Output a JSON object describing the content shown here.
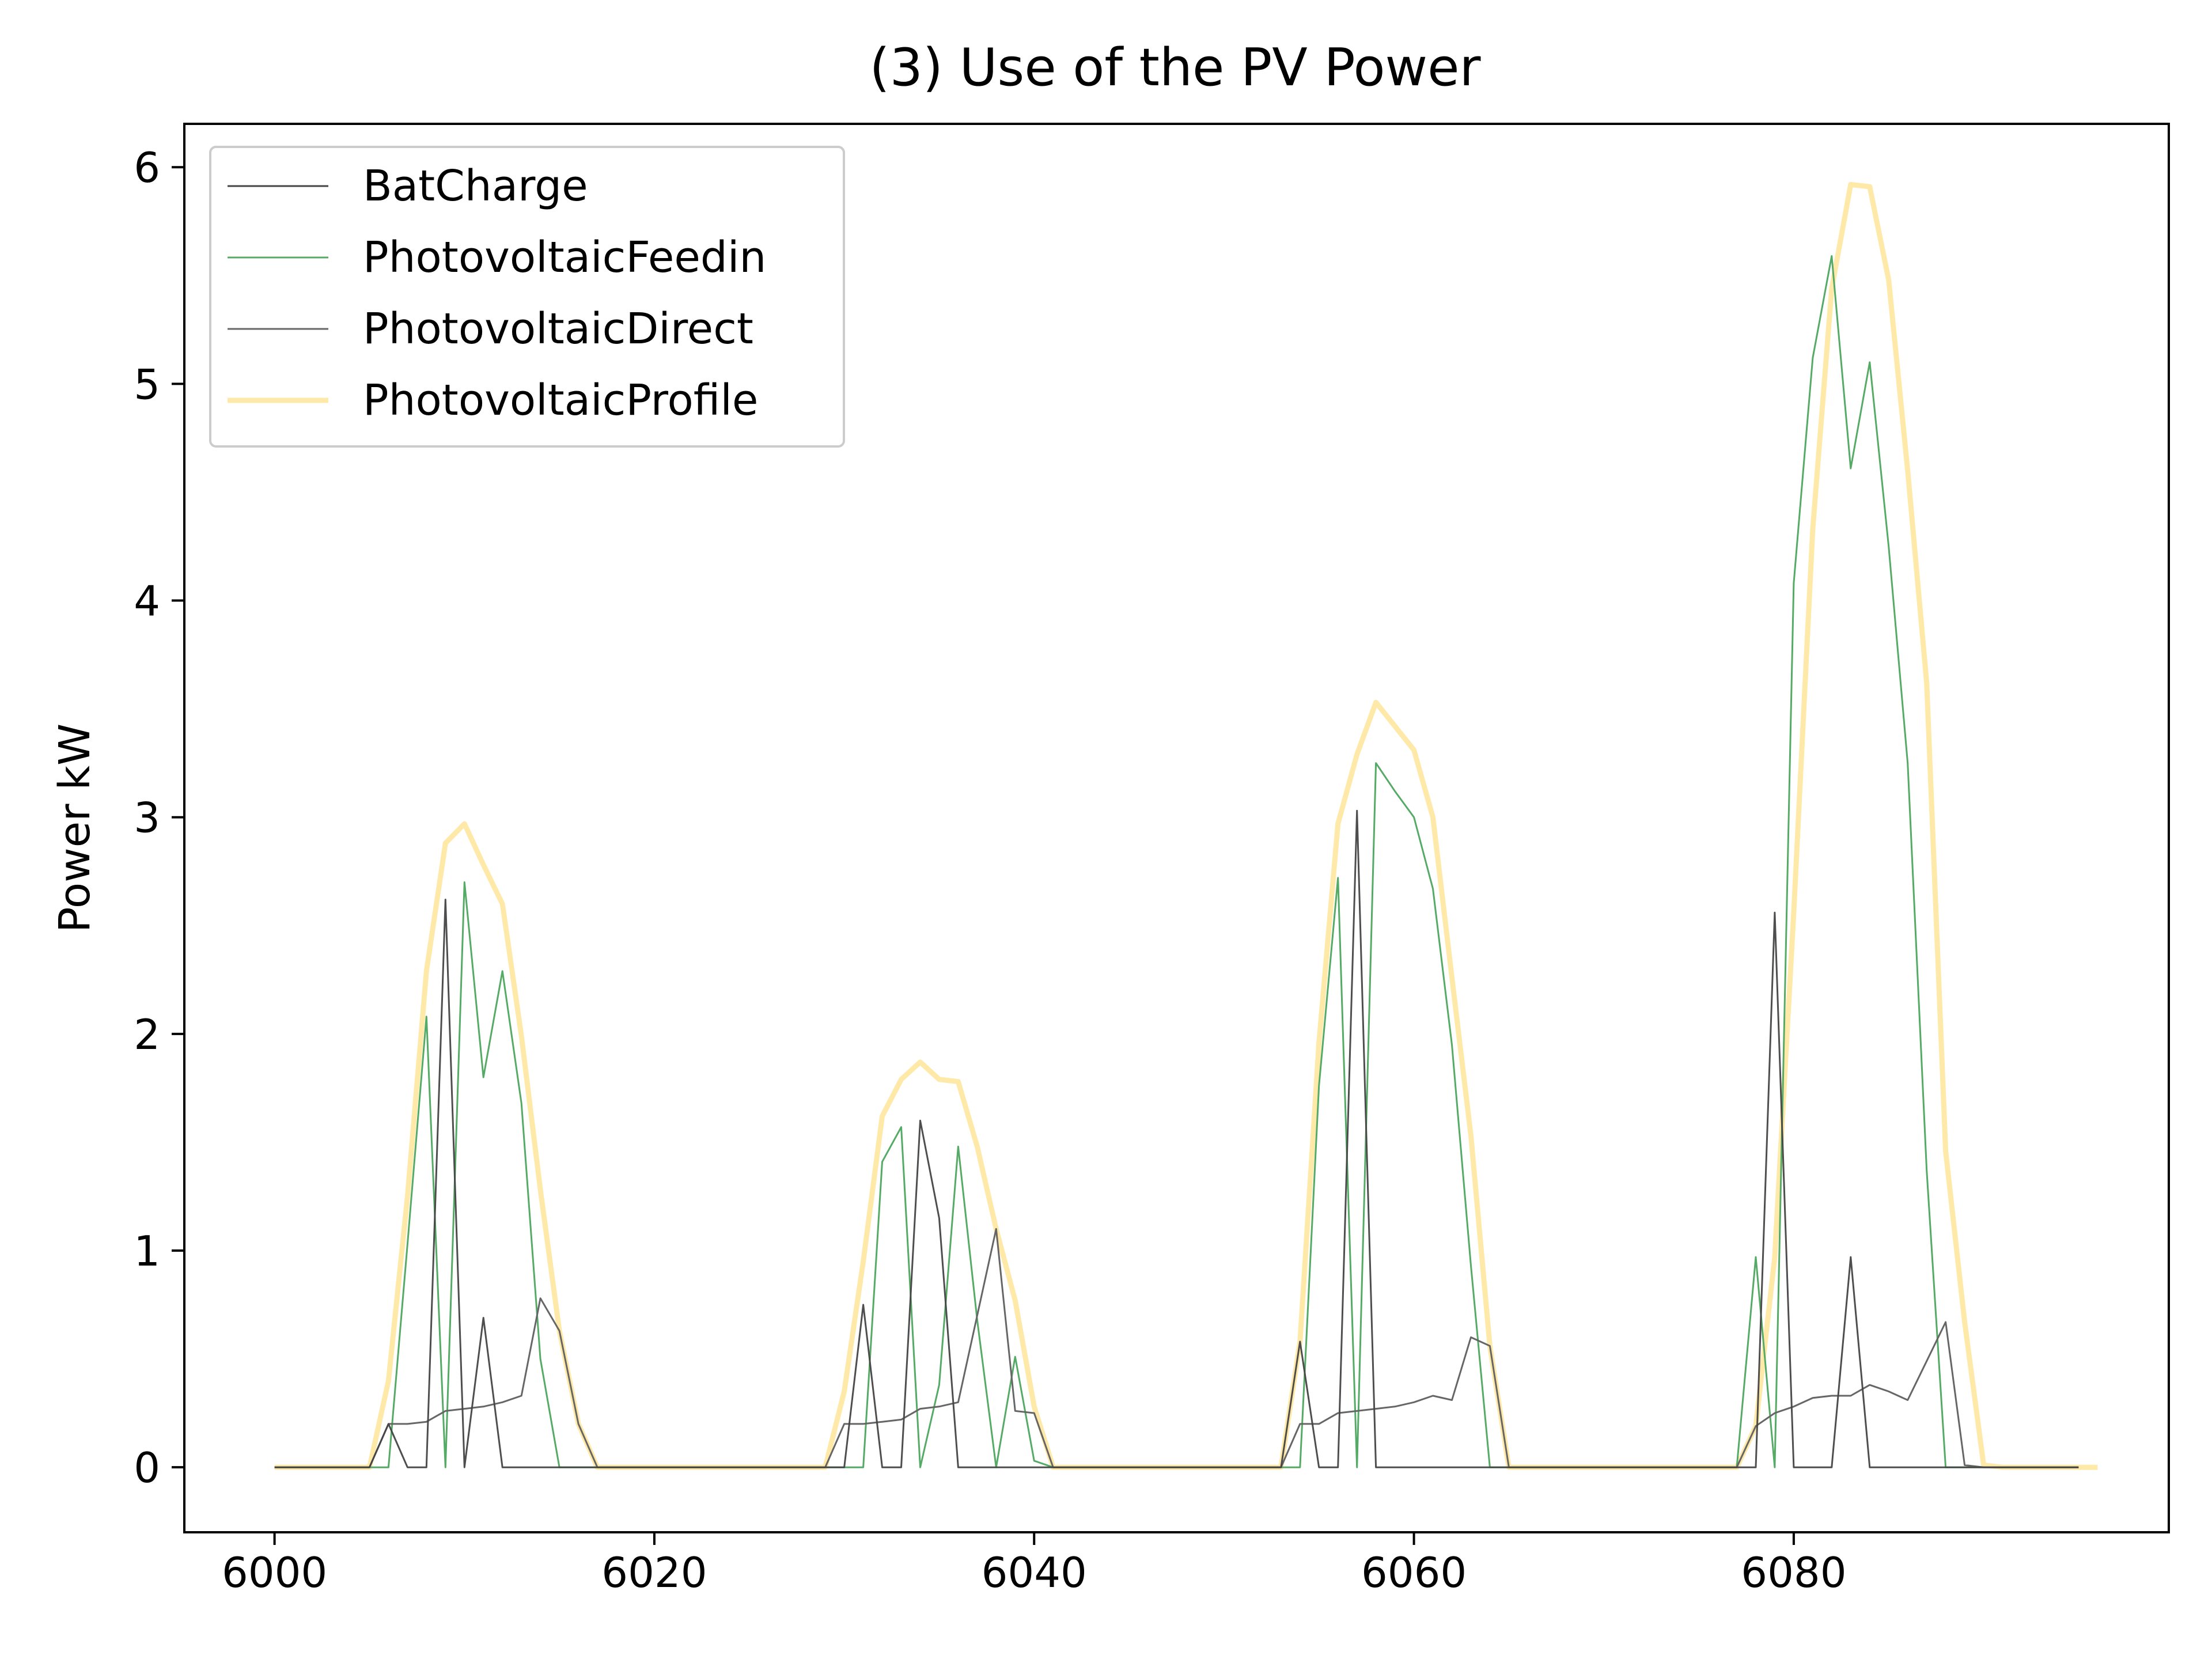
{
  "chart_data": {
    "type": "line",
    "title": "(3) Use of the PV Power",
    "xlabel": "",
    "ylabel": "Power kW",
    "xlim": [
      5995.25,
      6099.75
    ],
    "ylim": [
      -0.3,
      6.2
    ],
    "xticks": [
      6000,
      6020,
      6040,
      6060,
      6080
    ],
    "yticks": [
      0,
      1,
      2,
      3,
      4,
      5,
      6
    ],
    "x_start": 6000,
    "grid": false,
    "legend": "upper left",
    "series": [
      {
        "name": "BatCharge",
        "color": "#444444",
        "values": [
          0,
          0,
          0,
          0,
          0,
          0,
          0.2,
          0,
          0,
          2.62,
          0,
          0.69,
          0,
          0,
          0,
          0,
          0,
          0,
          0,
          0,
          0,
          0,
          0,
          0,
          0,
          0,
          0,
          0,
          0,
          0,
          0,
          0.75,
          0,
          0,
          1.6,
          1.15,
          0,
          0,
          0,
          0,
          0,
          0,
          0,
          0,
          0,
          0,
          0,
          0,
          0,
          0,
          0,
          0,
          0,
          0,
          0.58,
          0,
          0,
          3.03,
          0,
          0,
          0,
          0,
          0,
          0,
          0,
          0,
          0,
          0,
          0,
          0,
          0,
          0,
          0,
          0,
          0,
          0,
          0,
          0,
          0,
          2.56,
          0,
          0,
          0,
          0.97,
          0,
          0,
          0,
          0,
          0,
          0,
          0,
          0,
          0,
          0,
          0,
          0
        ]
      },
      {
        "name": "PhotovoltaicFeedin",
        "color": "#55aa66",
        "values": [
          0,
          0,
          0,
          0,
          0,
          0,
          0,
          1.03,
          2.08,
          0,
          2.7,
          1.8,
          2.29,
          1.68,
          0.5,
          0,
          0,
          0,
          0,
          0,
          0,
          0,
          0,
          0,
          0,
          0,
          0,
          0,
          0,
          0,
          0,
          0,
          1.41,
          1.57,
          0,
          0.38,
          1.48,
          0.68,
          0,
          0.51,
          0.03,
          0,
          0,
          0,
          0,
          0,
          0,
          0,
          0,
          0,
          0,
          0,
          0,
          0,
          0,
          1.76,
          2.72,
          0,
          3.25,
          3.12,
          3.0,
          2.67,
          1.95,
          0.93,
          0,
          0,
          0,
          0,
          0,
          0,
          0,
          0,
          0,
          0,
          0,
          0,
          0,
          0,
          0.97,
          0,
          4.08,
          5.12,
          5.59,
          4.61,
          5.1,
          4.25,
          3.25,
          1.37,
          0,
          0,
          0,
          0,
          0,
          0,
          0,
          0
        ]
      },
      {
        "name": "PhotovoltaicDirect",
        "color": "#666666",
        "values": [
          0,
          0,
          0,
          0,
          0,
          0,
          0.2,
          0.2,
          0.21,
          0.26,
          0.27,
          0.28,
          0.3,
          0.33,
          0.78,
          0.63,
          0.2,
          0,
          0,
          0,
          0,
          0,
          0,
          0,
          0,
          0,
          0,
          0,
          0,
          0,
          0.2,
          0.2,
          0.21,
          0.22,
          0.27,
          0.28,
          0.3,
          0.7,
          1.1,
          0.26,
          0.25,
          0,
          0,
          0,
          0,
          0,
          0,
          0,
          0,
          0,
          0,
          0,
          0,
          0,
          0.2,
          0.2,
          0.25,
          0.26,
          0.27,
          0.28,
          0.3,
          0.33,
          0.31,
          0.6,
          0.56,
          0,
          0,
          0,
          0,
          0,
          0,
          0,
          0,
          0,
          0,
          0,
          0,
          0,
          0.19,
          0.25,
          0.28,
          0.32,
          0.33,
          0.33,
          0.38,
          0.35,
          0.31,
          0.49,
          0.67,
          0.01,
          0,
          0,
          0,
          0,
          0,
          0
        ]
      },
      {
        "name": "PhotovoltaicProfile",
        "color": "#ffe9a8",
        "values": [
          0,
          0,
          0,
          0,
          0,
          0,
          0.4,
          1.25,
          2.29,
          2.88,
          2.97,
          2.78,
          2.6,
          1.99,
          1.28,
          0.63,
          0.2,
          0,
          0,
          0,
          0,
          0,
          0,
          0,
          0,
          0,
          0,
          0,
          0,
          0,
          0.35,
          0.95,
          1.62,
          1.79,
          1.87,
          1.79,
          1.78,
          1.48,
          1.1,
          0.77,
          0.28,
          0,
          0,
          0,
          0,
          0,
          0,
          0,
          0,
          0,
          0,
          0,
          0,
          0,
          0.58,
          1.96,
          2.97,
          3.29,
          3.53,
          3.42,
          3.31,
          3.0,
          2.26,
          1.53,
          0.56,
          0,
          0,
          0,
          0,
          0,
          0,
          0,
          0,
          0,
          0,
          0,
          0,
          0,
          0.19,
          0.97,
          2.56,
          4.33,
          5.44,
          5.92,
          5.91,
          5.48,
          4.6,
          3.62,
          1.46,
          0.67,
          0.01,
          0,
          0,
          0,
          0,
          0,
          0
        ]
      }
    ]
  }
}
